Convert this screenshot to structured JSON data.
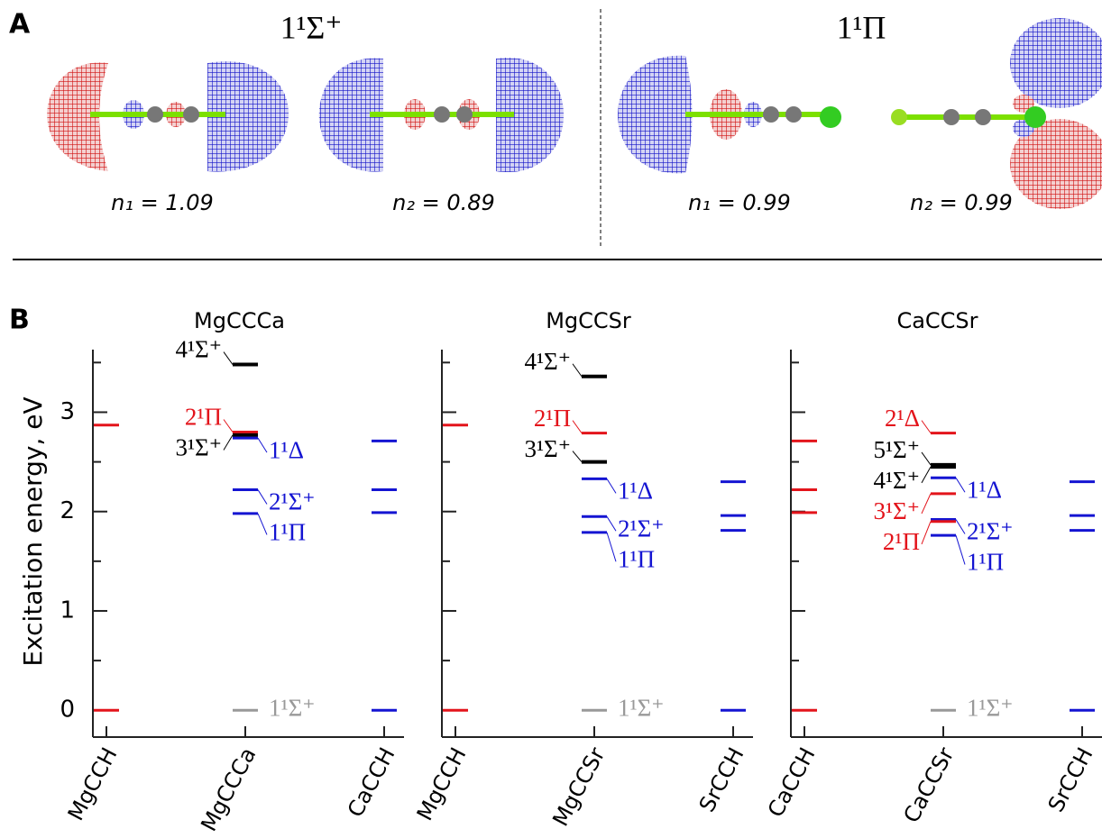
{
  "panel_labels": [
    "A",
    "B"
  ],
  "panel_a": {
    "titles": [
      "1¹Σ⁺",
      "1¹Π"
    ],
    "occupations": [
      "n₁ = 1.09",
      "n₂ = 0.89",
      "n₁ = 0.99",
      "n₂ = 0.99"
    ]
  },
  "chart_data": [
    {
      "type": "levels",
      "title": "MgCCCa",
      "ylabel": "Excitation energy, eV",
      "categories": [
        "MgCCH",
        "MgCCCa",
        "CaCCH"
      ],
      "ylim": [
        -0.27,
        3.63
      ],
      "yticks": [
        0,
        1,
        2,
        3
      ],
      "yminorticks": [
        0.5,
        1.5,
        2.5,
        3.5
      ],
      "levels": [
        {
          "category": 0,
          "value": 2.87,
          "color": "#e3141b"
        },
        {
          "category": 0,
          "value": 0,
          "color": "#e3141b"
        },
        {
          "category": 1,
          "value": 3.48,
          "color": "#000000",
          "label": "4¹Σ⁺"
        },
        {
          "category": 1,
          "value": 2.8,
          "color": "#e3141b",
          "label": "2¹Π"
        },
        {
          "category": 1,
          "value": 2.77,
          "color": "#000000",
          "label": "3¹Σ⁺"
        },
        {
          "category": 1,
          "value": 2.74,
          "color": "#1414d2",
          "label": "1¹Δ"
        },
        {
          "category": 1,
          "value": 2.22,
          "color": "#1414d2",
          "label": "2¹Σ⁺"
        },
        {
          "category": 1,
          "value": 1.98,
          "color": "#1414d2",
          "label": "1¹Π"
        },
        {
          "category": 1,
          "value": 0,
          "color": "#999999",
          "label": "1¹Σ⁺"
        },
        {
          "category": 2,
          "value": 2.71,
          "color": "#1414d2"
        },
        {
          "category": 2,
          "value": 2.22,
          "color": "#1414d2"
        },
        {
          "category": 2,
          "value": 1.99,
          "color": "#1414d2"
        },
        {
          "category": 2,
          "value": 0,
          "color": "#1414d2"
        }
      ]
    },
    {
      "type": "levels",
      "title": "MgCCSr",
      "categories": [
        "MgCCH",
        "MgCCSr",
        "SrCCH"
      ],
      "ylim": [
        -0.27,
        3.63
      ],
      "yminorticks": [
        0.5,
        1.5,
        2.5,
        3.5
      ],
      "yticks": [
        0,
        1,
        2,
        3
      ],
      "levels": [
        {
          "category": 0,
          "value": 2.87,
          "color": "#e3141b"
        },
        {
          "category": 0,
          "value": 0,
          "color": "#e3141b"
        },
        {
          "category": 1,
          "value": 3.36,
          "color": "#000000",
          "label": "4¹Σ⁺"
        },
        {
          "category": 1,
          "value": 2.79,
          "color": "#e3141b",
          "label": "2¹Π"
        },
        {
          "category": 1,
          "value": 2.5,
          "color": "#000000",
          "label": "3¹Σ⁺"
        },
        {
          "category": 1,
          "value": 2.33,
          "color": "#1414d2",
          "label": "1¹Δ"
        },
        {
          "category": 1,
          "value": 1.95,
          "color": "#1414d2",
          "label": "2¹Σ⁺"
        },
        {
          "category": 1,
          "value": 1.79,
          "color": "#1414d2",
          "label": "1¹Π"
        },
        {
          "category": 1,
          "value": 0,
          "color": "#999999",
          "label": "1¹Σ⁺"
        },
        {
          "category": 2,
          "value": 2.3,
          "color": "#1414d2"
        },
        {
          "category": 2,
          "value": 1.96,
          "color": "#1414d2"
        },
        {
          "category": 2,
          "value": 1.81,
          "color": "#1414d2"
        },
        {
          "category": 2,
          "value": 0,
          "color": "#1414d2"
        }
      ]
    },
    {
      "type": "levels",
      "title": "CaCCSr",
      "categories": [
        "CaCCH",
        "CaCCSr",
        "SrCCH"
      ],
      "ylim": [
        -0.27,
        3.63
      ],
      "yminorticks": [
        0.5,
        1.5,
        2.5,
        3.5
      ],
      "yticks": [
        0,
        1,
        2,
        3
      ],
      "levels": [
        {
          "category": 0,
          "value": 2.71,
          "color": "#e3141b"
        },
        {
          "category": 0,
          "value": 2.22,
          "color": "#e3141b"
        },
        {
          "category": 0,
          "value": 1.99,
          "color": "#e3141b"
        },
        {
          "category": 0,
          "value": 0,
          "color": "#e3141b"
        },
        {
          "category": 1,
          "value": 2.79,
          "color": "#e3141b",
          "label": "2¹Δ"
        },
        {
          "category": 1,
          "value": 2.47,
          "color": "#000000",
          "label": "5¹Σ⁺"
        },
        {
          "category": 1,
          "value": 2.45,
          "color": "#000000",
          "label": "4¹Σ⁺"
        },
        {
          "category": 1,
          "value": 2.34,
          "color": "#1414d2",
          "label": "1¹Δ"
        },
        {
          "category": 1,
          "value": 2.18,
          "color": "#e3141b",
          "label": "3¹Σ⁺"
        },
        {
          "category": 1,
          "value": 1.92,
          "color": "#1414d2",
          "label": "2¹Σ⁺"
        },
        {
          "category": 1,
          "value": 1.9,
          "color": "#e3141b",
          "label": "2¹Π"
        },
        {
          "category": 1,
          "value": 1.76,
          "color": "#1414d2",
          "label": "1¹Π"
        },
        {
          "category": 1,
          "value": 0,
          "color": "#999999",
          "label": "1¹Σ⁺"
        },
        {
          "category": 2,
          "value": 2.3,
          "color": "#1414d2"
        },
        {
          "category": 2,
          "value": 1.96,
          "color": "#1414d2"
        },
        {
          "category": 2,
          "value": 1.81,
          "color": "#1414d2"
        },
        {
          "category": 2,
          "value": 0,
          "color": "#1414d2"
        }
      ]
    }
  ]
}
